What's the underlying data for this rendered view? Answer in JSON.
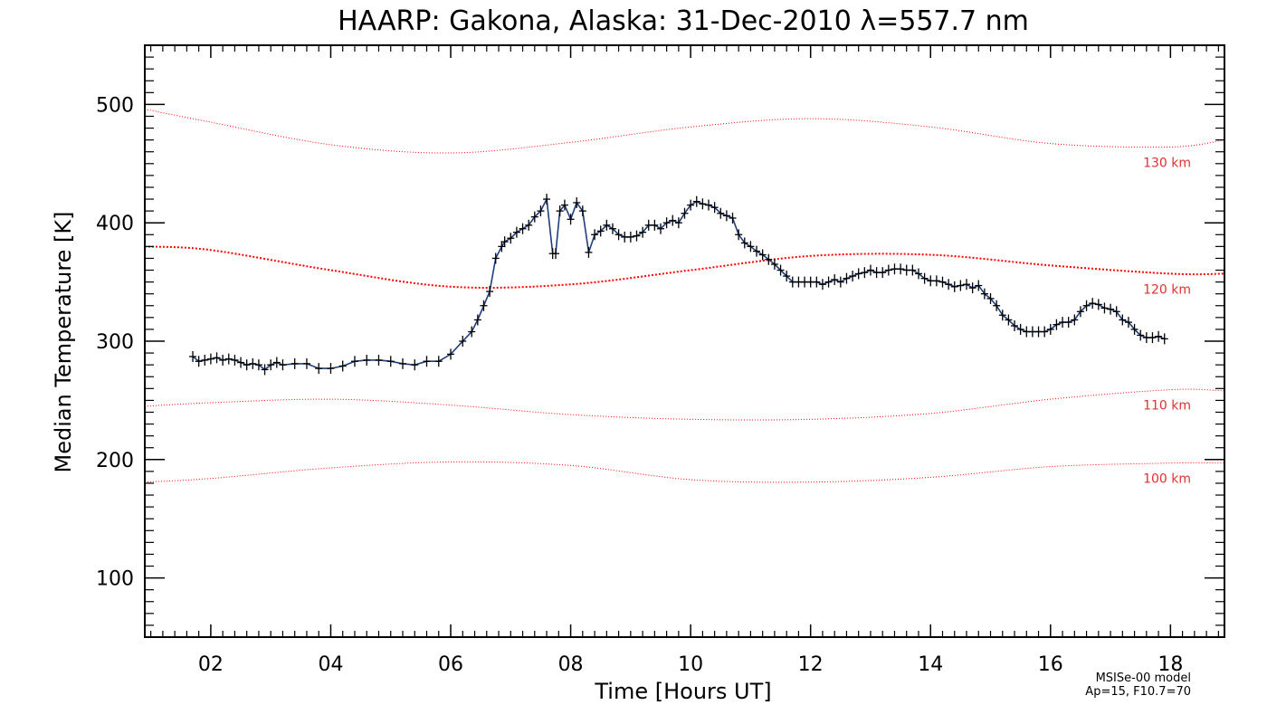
{
  "chart_data": {
    "type": "line",
    "title": "HAARP: Gakona,  Alaska: 31-Dec-2010 λ=557.7 nm",
    "xlabel": "Time [Hours UT]",
    "ylabel": "Median Temperature [K]",
    "xlim": [
      0.9,
      18.9
    ],
    "ylim": [
      50,
      550
    ],
    "x_ticks": [
      2,
      4,
      6,
      8,
      10,
      12,
      14,
      16,
      18
    ],
    "x_tick_labels": [
      "02",
      "04",
      "06",
      "08",
      "10",
      "12",
      "14",
      "16",
      "18"
    ],
    "y_ticks": [
      100,
      200,
      300,
      400,
      500
    ],
    "y_tick_labels": [
      "100",
      "200",
      "300",
      "400",
      "500"
    ],
    "grid": false,
    "colors": {
      "observed": "#1f3f7a",
      "marker": "#000000",
      "model": "#ff0000",
      "model_text": "#e03030"
    },
    "series": [
      {
        "role": "observed",
        "x": [
          1.7,
          1.8,
          1.9,
          2.0,
          2.1,
          2.2,
          2.3,
          2.4,
          2.5,
          2.6,
          2.7,
          2.8,
          2.9,
          3.0,
          3.1,
          3.2,
          3.4,
          3.6,
          3.8,
          4.0,
          4.2,
          4.4,
          4.6,
          4.8,
          5.0,
          5.2,
          5.4,
          5.6,
          5.8,
          6.0,
          6.2,
          6.35,
          6.45,
          6.55,
          6.65,
          6.75,
          6.85,
          6.9,
          7.0,
          7.1,
          7.2,
          7.3,
          7.4,
          7.5,
          7.6,
          7.7,
          7.75,
          7.82,
          7.9,
          8.0,
          8.1,
          8.2,
          8.3,
          8.4,
          8.5,
          8.6,
          8.7,
          8.8,
          8.9,
          9.0,
          9.1,
          9.2,
          9.3,
          9.4,
          9.5,
          9.6,
          9.7,
          9.8,
          9.9,
          10.0,
          10.1,
          10.2,
          10.3,
          10.4,
          10.5,
          10.6,
          10.7,
          10.8,
          10.9,
          11.0,
          11.1,
          11.2,
          11.3,
          11.4,
          11.5,
          11.6,
          11.7,
          11.8,
          11.9,
          12.0,
          12.1,
          12.2,
          12.3,
          12.4,
          12.5,
          12.6,
          12.7,
          12.8,
          12.9,
          13.0,
          13.1,
          13.2,
          13.3,
          13.4,
          13.5,
          13.6,
          13.7,
          13.8,
          13.9,
          14.0,
          14.1,
          14.2,
          14.3,
          14.4,
          14.5,
          14.6,
          14.7,
          14.8,
          14.9,
          15.0,
          15.1,
          15.2,
          15.3,
          15.4,
          15.5,
          15.6,
          15.7,
          15.8,
          15.9,
          16.0,
          16.1,
          16.2,
          16.3,
          16.4,
          16.5,
          16.6,
          16.7,
          16.8,
          16.9,
          17.0,
          17.1,
          17.2,
          17.3,
          17.4,
          17.5,
          17.6,
          17.7,
          17.8,
          17.9
        ],
        "y": [
          287,
          283,
          284,
          285,
          286,
          284,
          285,
          284,
          282,
          280,
          281,
          280,
          276,
          280,
          282,
          280,
          281,
          281,
          277,
          277,
          279,
          283,
          284,
          284,
          283,
          281,
          280,
          283,
          283,
          289,
          300,
          308,
          318,
          330,
          342,
          370,
          380,
          384,
          387,
          392,
          395,
          398,
          405,
          410,
          420,
          374,
          374,
          410,
          415,
          403,
          417,
          410,
          375,
          390,
          393,
          398,
          395,
          390,
          388,
          388,
          389,
          392,
          398,
          398,
          395,
          400,
          402,
          400,
          408,
          415,
          418,
          416,
          415,
          413,
          408,
          406,
          404,
          390,
          383,
          380,
          376,
          373,
          369,
          365,
          360,
          355,
          350,
          350,
          350,
          350,
          350,
          348,
          350,
          352,
          350,
          353,
          355,
          357,
          358,
          360,
          358,
          358,
          360,
          361,
          361,
          360,
          360,
          357,
          353,
          351,
          351,
          350,
          348,
          346,
          347,
          348,
          345,
          347,
          340,
          336,
          330,
          322,
          318,
          313,
          310,
          308,
          308,
          308,
          308,
          310,
          314,
          316,
          316,
          318,
          325,
          330,
          332,
          331,
          328,
          327,
          325,
          318,
          316,
          310,
          305,
          303,
          303,
          304,
          302
        ]
      },
      {
        "name": "130 km",
        "role": "model",
        "x": [
          0.9,
          2,
          4,
          6,
          8,
          10,
          12,
          14,
          16,
          18,
          18.9
        ],
        "y": [
          496,
          485,
          466,
          459,
          468,
          481,
          488,
          481,
          467,
          464,
          470
        ]
      },
      {
        "name": "120 km",
        "role": "model",
        "x": [
          0.9,
          2,
          4,
          6,
          8,
          10,
          12,
          14,
          16,
          18,
          18.9
        ],
        "y": [
          380,
          377,
          360,
          346,
          348,
          360,
          372,
          373,
          364,
          357,
          357
        ]
      },
      {
        "name": "110 km",
        "role": "model",
        "x": [
          0.9,
          2,
          4,
          6,
          8,
          10,
          12,
          14,
          16,
          18,
          18.9
        ],
        "y": [
          245,
          248,
          251,
          246,
          238,
          234,
          234,
          239,
          251,
          259,
          258
        ]
      },
      {
        "name": "100 km",
        "role": "model",
        "x": [
          0.9,
          2,
          4,
          6,
          8,
          10,
          12,
          14,
          16,
          18,
          18.9
        ],
        "y": [
          181,
          184,
          193,
          198,
          195,
          183,
          181,
          185,
          194,
          197,
          197
        ]
      }
    ],
    "model_note": [
      "MSISe-00 model",
      "Ap=15, F10.7=70"
    ]
  }
}
